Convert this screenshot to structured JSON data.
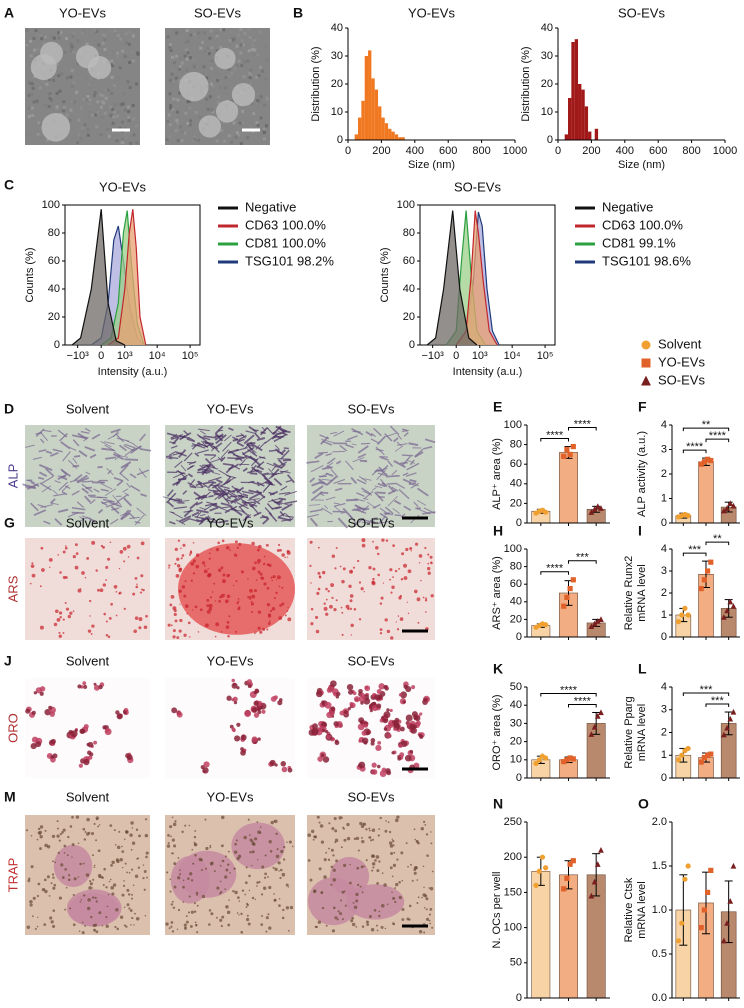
{
  "image_panels": [
    {
      "letter": "A",
      "columns": [
        "YO-EVs",
        "SO-EVs"
      ]
    },
    {
      "letter": "D",
      "row_label": "ALP",
      "columns": [
        "Solvent",
        "YO-EVs",
        "SO-EVs"
      ]
    },
    {
      "letter": "G",
      "row_label": "ARS",
      "columns": [
        "Solvent",
        "YO-EVs",
        "SO-EVs"
      ]
    },
    {
      "letter": "J",
      "row_label": "ORO",
      "columns": [
        "Solvent",
        "YO-EVs",
        "SO-EVs"
      ]
    },
    {
      "letter": "M",
      "row_label": "TRAP",
      "columns": [
        "Solvent",
        "YO-EVs",
        "SO-EVs"
      ]
    }
  ],
  "legend": {
    "series": [
      {
        "name": "Solvent",
        "color": "#f0a030",
        "bar_color": "#f7d3a6",
        "marker": "circle"
      },
      {
        "name": "YO-EVs",
        "color": "#e0622a",
        "bar_color": "#f2ad82",
        "marker": "square"
      },
      {
        "name": "SO-EVs",
        "color": "#7a1f1f",
        "bar_color": "#b8896c",
        "marker": "triangle"
      }
    ]
  },
  "chart_data": [
    {
      "type": "histogram",
      "letter": "B",
      "title": "YO-EVs",
      "ylabel": "Distribution (%)",
      "xlabel": "Size (nm)",
      "color": "#f07820",
      "bins": [
        40,
        60,
        80,
        100,
        120,
        140,
        160,
        180,
        200,
        220,
        240,
        260,
        280,
        300,
        320,
        340
      ],
      "values": [
        2,
        8,
        14,
        30,
        32,
        22,
        18,
        12,
        8,
        6,
        4,
        3,
        2,
        1,
        1
      ],
      "xlim": [
        0,
        1000
      ],
      "xticks": [
        0,
        200,
        400,
        600,
        800,
        1000
      ],
      "ylim": [
        0,
        40
      ],
      "yticks": [
        0,
        10,
        20,
        30,
        40
      ]
    },
    {
      "type": "histogram",
      "title": "SO-EVs",
      "ylabel": "Distribution (%)",
      "xlabel": "Size (nm)",
      "color": "#a01818",
      "bins": [
        40,
        60,
        80,
        100,
        120,
        140,
        160,
        180,
        200,
        220,
        240
      ],
      "values": [
        2,
        15,
        35,
        36,
        20,
        18,
        12,
        3,
        0,
        4
      ],
      "xlim": [
        0,
        1000
      ],
      "xticks": [
        0,
        200,
        400,
        600,
        800,
        1000
      ],
      "ylim": [
        0,
        40
      ],
      "yticks": [
        0,
        10,
        20,
        30,
        40
      ]
    },
    {
      "type": "flow",
      "letter": "C",
      "title": "YO-EVs",
      "ylabel": "Counts (%)",
      "xlabel": "Intensity (a.u.)",
      "xscale": "biexponential",
      "xlim": [
        -2500,
        200000
      ],
      "xticks": [
        {
          "value": -1000,
          "label": "−10³"
        },
        0,
        {
          "value": 1000,
          "label": "10³"
        },
        {
          "value": 10000,
          "label": "10⁴"
        },
        {
          "value": 100000,
          "label": "10⁵"
        }
      ],
      "ylim": [
        0,
        100
      ],
      "yticks": [
        0,
        20,
        40,
        60,
        80,
        100
      ],
      "series": [
        {
          "name": "Negative",
          "color": "#111111",
          "fill": "#6e6a66",
          "x": [
            -1500,
            -800,
            -300,
            0,
            200,
            500,
            1000
          ],
          "values": [
            0,
            5,
            40,
            97,
            30,
            3,
            0
          ]
        },
        {
          "name": "CD63 100.0%",
          "color": "#c0272d",
          "fill": "#e9a070",
          "x": [
            200,
            600,
            1000,
            1400,
            1800,
            2300,
            3000,
            4500
          ],
          "values": [
            0,
            5,
            40,
            80,
            97,
            70,
            20,
            0
          ]
        },
        {
          "name": "CD81 100.0%",
          "color": "#2aa040",
          "fill": "#9ccf8a",
          "x": [
            0,
            300,
            600,
            900,
            1200,
            1600,
            2500,
            4000
          ],
          "values": [
            0,
            5,
            30,
            80,
            96,
            60,
            15,
            0
          ]
        },
        {
          "name": "TSG101 98.2%",
          "color": "#1f3a7a",
          "fill": "#a9a8dc",
          "x": [
            -300,
            0,
            200,
            400,
            600,
            900,
            1500,
            2500,
            4000
          ],
          "values": [
            0,
            5,
            30,
            75,
            85,
            60,
            25,
            5,
            0
          ]
        }
      ]
    },
    {
      "type": "flow",
      "title": "SO-EVs",
      "ylabel": "Counts (%)",
      "xlabel": "Intensity (a.u.)",
      "xscale": "biexponential",
      "xlim": [
        -2500,
        200000
      ],
      "xticks": [
        {
          "value": -1000,
          "label": "−10³"
        },
        0,
        {
          "value": 1000,
          "label": "10³"
        },
        {
          "value": 10000,
          "label": "10⁴"
        },
        {
          "value": 100000,
          "label": "10⁵"
        }
      ],
      "ylim": [
        0,
        100
      ],
      "yticks": [
        0,
        20,
        40,
        60,
        80,
        100
      ],
      "series": [
        {
          "name": "Negative",
          "color": "#111111",
          "fill": "#6e6a66",
          "x": [
            -1500,
            -800,
            -400,
            -100,
            100,
            400,
            800
          ],
          "values": [
            0,
            5,
            40,
            96,
            40,
            5,
            0
          ]
        },
        {
          "name": "CD63 100.0%",
          "color": "#c0272d",
          "fill": "#e9a070",
          "x": [
            0,
            300,
            500,
            700,
            900,
            1300,
            2000,
            3500
          ],
          "values": [
            0,
            10,
            50,
            96,
            80,
            45,
            10,
            0
          ]
        },
        {
          "name": "CD81 99.1%",
          "color": "#2aa040",
          "fill": "#9ccf8a",
          "x": [
            -300,
            0,
            150,
            300,
            500,
            800,
            1500
          ],
          "values": [
            0,
            10,
            60,
            96,
            50,
            10,
            0
          ]
        },
        {
          "name": "TSG101 98.6%",
          "color": "#1f3a7a",
          "fill": "#a9a8dc",
          "x": [
            0,
            300,
            600,
            900,
            1200,
            1700,
            2500,
            4000
          ],
          "values": [
            0,
            8,
            45,
            95,
            85,
            40,
            10,
            0
          ]
        }
      ]
    },
    {
      "type": "bar",
      "letter": "E",
      "ylabel": "ALP⁺ area (%)",
      "categories": [
        null,
        null,
        null
      ],
      "values": [
        12,
        72,
        14
      ],
      "errors": [
        2,
        6,
        3
      ],
      "points": [
        [
          10,
          12,
          13,
          11
        ],
        [
          68,
          75,
          70,
          78
        ],
        [
          11,
          14,
          17,
          15
        ]
      ],
      "ylim": [
        0,
        100
      ],
      "yticks": [
        0,
        20,
        40,
        60,
        80,
        100
      ],
      "brackets": [
        {
          "from": 0,
          "to": 1,
          "label": "****"
        },
        {
          "from": 1,
          "to": 2,
          "label": "****"
        }
      ]
    },
    {
      "type": "bar",
      "letter": "F",
      "ylabel": "ALP activity (a.u.)",
      "categories": [
        null,
        null,
        null
      ],
      "values": [
        0.3,
        2.5,
        0.65
      ],
      "errors": [
        0.1,
        0.15,
        0.2
      ],
      "points": [
        [
          0.25,
          0.3,
          0.35,
          0.3
        ],
        [
          2.4,
          2.5,
          2.6,
          2.55
        ],
        [
          0.5,
          0.6,
          0.8,
          0.7
        ]
      ],
      "ylim": [
        0,
        4
      ],
      "yticks": [
        0,
        1,
        2,
        3,
        4
      ],
      "brackets": [
        {
          "from": 0,
          "to": 1,
          "label": "****"
        },
        {
          "from": 1,
          "to": 2,
          "label": "****"
        },
        {
          "from": 0,
          "to": 2,
          "label": "**"
        }
      ]
    },
    {
      "type": "bar",
      "letter": "H",
      "ylabel": "ARS⁺ area (%)",
      "categories": [
        null,
        null,
        null
      ],
      "values": [
        13,
        50,
        16
      ],
      "errors": [
        2,
        14,
        4
      ],
      "points": [
        [
          11,
          13,
          15,
          14
        ],
        [
          35,
          45,
          55,
          65
        ],
        [
          12,
          15,
          18,
          20
        ]
      ],
      "ylim": [
        0,
        100
      ],
      "yticks": [
        0,
        20,
        40,
        60,
        80,
        100
      ],
      "brackets": [
        {
          "from": 0,
          "to": 1,
          "label": "****"
        },
        {
          "from": 1,
          "to": 2,
          "label": "***"
        }
      ]
    },
    {
      "type": "bar",
      "letter": "I",
      "ylabel": [
        "Relative Runx2",
        "mRNA level"
      ],
      "categories": [
        null,
        null,
        null
      ],
      "values": [
        1.0,
        2.85,
        1.3
      ],
      "errors": [
        0.3,
        0.6,
        0.4
      ],
      "points": [
        [
          0.7,
          1.0,
          1.3,
          1.0
        ],
        [
          2.2,
          2.6,
          3.0,
          3.4
        ],
        [
          0.9,
          1.2,
          1.6,
          1.4
        ]
      ],
      "ylim": [
        0,
        4
      ],
      "yticks": [
        0,
        1,
        2,
        3,
        4
      ],
      "brackets": [
        {
          "from": 0,
          "to": 1,
          "label": "***"
        },
        {
          "from": 1,
          "to": 2,
          "label": "**"
        }
      ]
    },
    {
      "type": "bar",
      "letter": "K",
      "ylabel": "ORO⁺ area (%)",
      "categories": [
        null,
        null,
        null
      ],
      "values": [
        10,
        10,
        30
      ],
      "errors": [
        2,
        1.5,
        6
      ],
      "points": [
        [
          8,
          10,
          12,
          11
        ],
        [
          9,
          10,
          11,
          10.5
        ],
        [
          24,
          28,
          34,
          36
        ]
      ],
      "ylim": [
        0,
        50
      ],
      "yticks": [
        0,
        10,
        20,
        30,
        40,
        50
      ],
      "brackets": [
        {
          "from": 1,
          "to": 2,
          "label": "****"
        },
        {
          "from": 0,
          "to": 2,
          "label": "****"
        }
      ]
    },
    {
      "type": "bar",
      "letter": "L",
      "ylabel": [
        "Relative Pparg",
        "mRNA level"
      ],
      "categories": [
        null,
        null,
        null
      ],
      "values": [
        1.0,
        0.9,
        2.4
      ],
      "errors": [
        0.3,
        0.2,
        0.5
      ],
      "points": [
        [
          0.8,
          1.0,
          1.2,
          1.3
        ],
        [
          0.7,
          0.9,
          1.0,
          1.05
        ],
        [
          1.9,
          2.2,
          2.6,
          2.9
        ]
      ],
      "ylim": [
        0,
        4
      ],
      "yticks": [
        0,
        1,
        2,
        3,
        4
      ],
      "brackets": [
        {
          "from": 1,
          "to": 2,
          "label": "***"
        },
        {
          "from": 0,
          "to": 2,
          "label": "***"
        }
      ]
    },
    {
      "type": "bar",
      "letter": "N",
      "ylabel": "N. OCs per well",
      "categories": [
        null,
        null,
        null
      ],
      "values": [
        180,
        175,
        175
      ],
      "errors": [
        20,
        20,
        30
      ],
      "points": [
        [
          160,
          180,
          200,
          185
        ],
        [
          155,
          170,
          190,
          195
        ],
        [
          145,
          165,
          190,
          210
        ]
      ],
      "ylim": [
        0,
        250
      ],
      "yticks": [
        0,
        50,
        100,
        150,
        200,
        250
      ],
      "brackets": []
    },
    {
      "type": "bar",
      "letter": "O",
      "ylabel": [
        "Relative Ctsk",
        "mRNA level"
      ],
      "categories": [
        null,
        null,
        null
      ],
      "values": [
        1.0,
        1.08,
        0.98
      ],
      "errors": [
        0.4,
        0.35,
        0.35
      ],
      "points": [
        [
          0.65,
          0.85,
          1.35,
          1.5
        ],
        [
          0.8,
          1.0,
          1.2,
          1.45
        ],
        [
          0.65,
          0.85,
          1.1,
          1.5
        ]
      ],
      "ylim": [
        0,
        2
      ],
      "yticks": [
        {
          "value": 0,
          "label": "0.0"
        },
        {
          "value": 0.5,
          "label": "0.5"
        },
        {
          "value": 1,
          "label": "1.0"
        },
        {
          "value": 1.5,
          "label": "1.5"
        },
        {
          "value": 2,
          "label": "2.0"
        }
      ],
      "brackets": []
    }
  ]
}
